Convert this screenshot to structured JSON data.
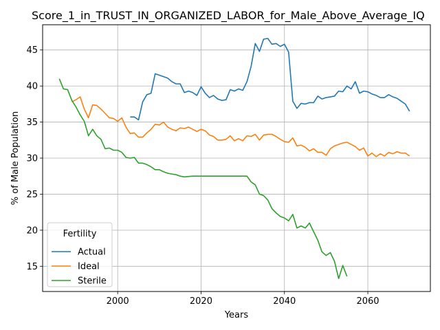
{
  "chart_data": {
    "type": "line",
    "title": "Score_1_in_TRUST_IN_ORGANIZED_LABOR_for_Male_Above_Average_IQ",
    "xlabel": "Years",
    "ylabel": "% of Male Population",
    "xlim": [
      1982,
      2075
    ],
    "ylim": [
      11.5,
      48.5
    ],
    "xticks": [
      2000,
      2020,
      2040,
      2060
    ],
    "yticks": [
      15,
      20,
      25,
      30,
      35,
      40,
      45
    ],
    "grid": true,
    "legend": {
      "title": "Fertility",
      "placement": "lower-left"
    },
    "series": [
      {
        "name": "Actual",
        "color": "#1f77b4",
        "x": [
          2003,
          2004,
          2005,
          2006,
          2007,
          2008,
          2009,
          2010,
          2011,
          2012,
          2013,
          2014,
          2015,
          2016,
          2017,
          2018,
          2019,
          2020,
          2021,
          2022,
          2023,
          2024,
          2025,
          2026,
          2027,
          2028,
          2029,
          2030,
          2031,
          2032,
          2033,
          2034,
          2035,
          2036,
          2037,
          2038,
          2039,
          2040,
          2041,
          2042,
          2043,
          2044,
          2045,
          2046,
          2047,
          2048,
          2049,
          2050,
          2051,
          2052,
          2053,
          2054,
          2055,
          2056,
          2057,
          2058,
          2059,
          2060,
          2061,
          2062,
          2063,
          2064,
          2065,
          2066,
          2067,
          2068,
          2069,
          2070
        ],
        "y": [
          35.7,
          35.7,
          35.3,
          37.8,
          38.8,
          39.0,
          41.7,
          41.5,
          41.3,
          41.1,
          40.6,
          40.3,
          40.3,
          39.1,
          39.3,
          39.1,
          38.7,
          39.9,
          39.0,
          38.4,
          38.7,
          38.2,
          38.0,
          38.1,
          39.5,
          39.3,
          39.6,
          39.4,
          40.6,
          42.7,
          45.9,
          44.8,
          46.5,
          46.6,
          45.8,
          45.9,
          45.5,
          45.8,
          44.7,
          37.9,
          36.9,
          37.6,
          37.5,
          37.7,
          37.7,
          38.6,
          38.2,
          38.4,
          38.5,
          38.6,
          39.3,
          39.2,
          40.0,
          39.6,
          40.6,
          39.0,
          39.3,
          39.2,
          38.9,
          38.7,
          38.4,
          38.4,
          38.8,
          38.5,
          38.3,
          37.9,
          37.5,
          36.5
        ]
      },
      {
        "name": "Ideal",
        "color": "#ff7f0e",
        "x": [
          1989,
          1990,
          1991,
          1992,
          1993,
          1994,
          1995,
          1996,
          1997,
          1998,
          1999,
          2000,
          2001,
          2002,
          2003,
          2004,
          2005,
          2006,
          2007,
          2008,
          2009,
          2010,
          2011,
          2012,
          2013,
          2014,
          2015,
          2016,
          2017,
          2018,
          2019,
          2020,
          2021,
          2022,
          2023,
          2024,
          2025,
          2026,
          2027,
          2028,
          2029,
          2030,
          2031,
          2032,
          2033,
          2034,
          2035,
          2036,
          2037,
          2038,
          2039,
          2040,
          2041,
          2042,
          2043,
          2044,
          2045,
          2046,
          2047,
          2048,
          2049,
          2050,
          2051,
          2052,
          2053,
          2054,
          2055,
          2056,
          2057,
          2058,
          2059,
          2060,
          2061,
          2062,
          2063,
          2064,
          2065,
          2066,
          2067,
          2068,
          2069,
          2070
        ],
        "y": [
          37.8,
          38.1,
          38.5,
          36.8,
          35.6,
          37.4,
          37.3,
          36.8,
          36.2,
          35.6,
          35.5,
          35.1,
          35.6,
          34.3,
          33.4,
          33.5,
          32.9,
          32.9,
          33.5,
          34.0,
          34.7,
          34.6,
          35.0,
          34.3,
          34.0,
          33.8,
          34.2,
          34.1,
          34.3,
          34.0,
          33.7,
          34.0,
          33.8,
          33.2,
          33.0,
          32.5,
          32.5,
          32.6,
          33.1,
          32.4,
          32.7,
          32.4,
          33.1,
          33.0,
          33.3,
          32.5,
          33.2,
          33.3,
          33.3,
          33.0,
          32.6,
          32.3,
          32.2,
          32.8,
          31.7,
          31.8,
          31.5,
          31.0,
          31.3,
          30.8,
          30.8,
          30.4,
          31.3,
          31.7,
          31.9,
          32.1,
          32.2,
          31.9,
          31.6,
          31.1,
          31.4,
          30.3,
          30.7,
          30.2,
          30.6,
          30.3,
          30.8,
          30.6,
          30.9,
          30.7,
          30.7,
          30.3
        ]
      },
      {
        "name": "Sterile",
        "color": "#2ca02c",
        "x": [
          1986,
          1987,
          1988,
          1989,
          1990,
          1991,
          1992,
          1993,
          1994,
          1995,
          1996,
          1997,
          1998,
          1999,
          2000,
          2001,
          2002,
          2003,
          2004,
          2005,
          2006,
          2007,
          2008,
          2009,
          2010,
          2011,
          2012,
          2013,
          2014,
          2015,
          2016,
          2017,
          2018,
          2019,
          2020,
          2021,
          2022,
          2023,
          2024,
          2025,
          2026,
          2027,
          2028,
          2029,
          2030,
          2031,
          2032,
          2033,
          2034,
          2035,
          2036,
          2037,
          2038,
          2039,
          2040,
          2041,
          2042,
          2043,
          2044,
          2045,
          2046,
          2047,
          2048,
          2049,
          2050,
          2051,
          2052,
          2053,
          2054,
          2055
        ],
        "y": [
          41.0,
          39.6,
          39.5,
          38.0,
          37.1,
          36.0,
          35.1,
          33.1,
          34.0,
          33.1,
          32.6,
          31.3,
          31.4,
          31.1,
          31.1,
          30.8,
          30.1,
          30.0,
          30.1,
          29.3,
          29.3,
          29.1,
          28.8,
          28.4,
          28.4,
          28.1,
          27.9,
          27.8,
          27.7,
          27.5,
          27.4,
          27.45,
          27.5,
          27.5,
          27.5,
          27.5,
          27.5,
          27.5,
          27.5,
          27.5,
          27.5,
          27.5,
          27.5,
          27.5,
          27.5,
          27.5,
          26.7,
          26.3,
          25.0,
          24.8,
          24.2,
          23.0,
          22.4,
          21.9,
          21.7,
          21.3,
          22.2,
          20.3,
          20.6,
          20.3,
          21.0,
          19.8,
          18.6,
          17.0,
          16.5,
          16.9,
          15.7,
          13.3,
          15.1,
          13.6
        ]
      }
    ]
  }
}
